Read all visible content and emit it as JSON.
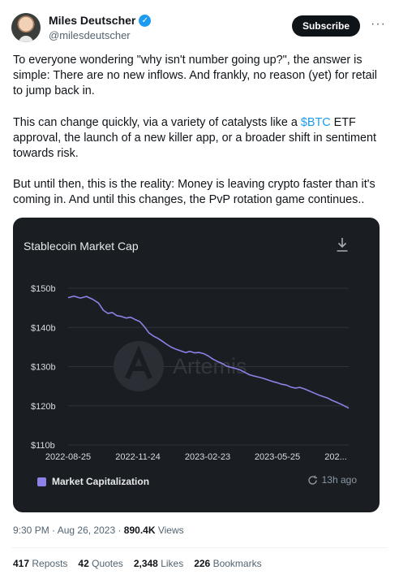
{
  "author": {
    "display_name": "Miles Deutscher",
    "verified_icon": "verified-badge-icon",
    "handle": "@milesdeutscher"
  },
  "actions": {
    "subscribe_label": "Subscribe",
    "more_label": "···"
  },
  "tweet": {
    "p1": "To everyone wondering \"why isn't number going up?\", the answer is simple: There are no new inflows. And frankly, no reason (yet) for retail to jump back in.",
    "p2_before": "This can change quickly, via a variety of catalysts like a ",
    "p2_cashtag": "$BTC",
    "p2_after": " ETF approval, the launch of a new killer app, or a broader shift in sentiment towards risk.",
    "p3": "But until then, this is the reality: Money is leaving crypto faster than it's coming in. And until this changes, the PvP rotation game continues.."
  },
  "chart_data": {
    "type": "line",
    "title": "Stablecoin Market Cap",
    "watermark": "Artemis",
    "y_ticks": [
      "$150b",
      "$140b",
      "$130b",
      "$120b",
      "$110b"
    ],
    "y_tick_values": [
      150,
      140,
      130,
      120,
      110
    ],
    "ylim": [
      110,
      150
    ],
    "x_ticks": [
      "2022-08-25",
      "2022-11-24",
      "2023-02-23",
      "2023-05-25",
      "202..."
    ],
    "grid": true,
    "legend_position": "bottom-left",
    "series": [
      {
        "name": "Market Capitalization",
        "color": "#8c82e8",
        "points": [
          [
            0,
            147.6
          ],
          [
            4,
            148.0
          ],
          [
            8,
            147.5
          ],
          [
            12,
            147.9
          ],
          [
            16,
            147.2
          ],
          [
            20,
            146.2
          ],
          [
            23,
            144.4
          ],
          [
            26,
            143.6
          ],
          [
            29,
            143.8
          ],
          [
            32,
            143.0
          ],
          [
            35,
            142.8
          ],
          [
            38,
            142.4
          ],
          [
            41,
            142.6
          ],
          [
            44,
            142.0
          ],
          [
            47,
            141.5
          ],
          [
            50,
            140.2
          ],
          [
            53,
            138.6
          ],
          [
            56,
            137.8
          ],
          [
            59,
            137.2
          ],
          [
            62,
            136.4
          ],
          [
            65,
            135.6
          ],
          [
            68,
            134.9
          ],
          [
            71,
            134.4
          ],
          [
            74,
            134.0
          ],
          [
            77,
            133.6
          ],
          [
            80,
            133.9
          ],
          [
            83,
            133.5
          ],
          [
            86,
            133.6
          ],
          [
            89,
            133.3
          ],
          [
            92,
            132.7
          ],
          [
            95,
            131.9
          ],
          [
            98,
            131.3
          ],
          [
            101,
            130.8
          ],
          [
            104,
            130.1
          ],
          [
            107,
            129.8
          ],
          [
            110,
            129.5
          ],
          [
            113,
            129.1
          ],
          [
            116,
            128.5
          ],
          [
            119,
            127.9
          ],
          [
            122,
            127.6
          ],
          [
            125,
            127.3
          ],
          [
            128,
            127.0
          ],
          [
            131,
            126.6
          ],
          [
            134,
            126.2
          ],
          [
            137,
            125.9
          ],
          [
            140,
            125.5
          ],
          [
            143,
            125.3
          ],
          [
            146,
            124.8
          ],
          [
            149,
            124.5
          ],
          [
            152,
            124.7
          ],
          [
            155,
            124.3
          ],
          [
            158,
            123.8
          ],
          [
            161,
            123.3
          ],
          [
            164,
            122.8
          ],
          [
            167,
            122.4
          ],
          [
            170,
            122.0
          ],
          [
            173,
            121.4
          ],
          [
            176,
            120.9
          ],
          [
            179,
            120.4
          ],
          [
            182,
            119.8
          ],
          [
            184,
            119.4
          ]
        ]
      }
    ],
    "updated_label": "13h ago"
  },
  "meta": {
    "time": "9:30 PM",
    "date": "Aug 26, 2023",
    "views_count": "890.4K",
    "views_label": "Views"
  },
  "stats": {
    "reposts_count": "417",
    "reposts_label": "Reposts",
    "quotes_count": "42",
    "quotes_label": "Quotes",
    "likes_count": "2,348",
    "likes_label": "Likes",
    "bookmarks_count": "226",
    "bookmarks_label": "Bookmarks"
  }
}
